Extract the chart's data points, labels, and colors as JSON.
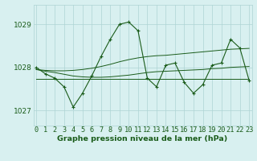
{
  "xlabel": "Graphe pression niveau de la mer (hPa)",
  "hours": [
    0,
    1,
    2,
    3,
    4,
    5,
    6,
    7,
    8,
    9,
    10,
    11,
    12,
    13,
    14,
    15,
    16,
    17,
    18,
    19,
    20,
    21,
    22,
    23
  ],
  "main_line": [
    1028.0,
    1027.85,
    1027.75,
    1027.55,
    1027.08,
    1027.4,
    1027.8,
    1028.25,
    1028.65,
    1029.0,
    1029.05,
    1028.85,
    1027.75,
    1027.55,
    1028.05,
    1028.1,
    1027.65,
    1027.4,
    1027.6,
    1028.05,
    1028.1,
    1028.65,
    1028.45,
    1027.7
  ],
  "smooth_upper": [
    1027.95,
    1027.93,
    1027.92,
    1027.92,
    1027.93,
    1027.95,
    1027.98,
    1028.02,
    1028.07,
    1028.13,
    1028.18,
    1028.22,
    1028.25,
    1028.27,
    1028.28,
    1028.3,
    1028.32,
    1028.34,
    1028.36,
    1028.38,
    1028.4,
    1028.42,
    1028.43,
    1028.44
  ],
  "smooth_lower": [
    1027.95,
    1027.91,
    1027.88,
    1027.84,
    1027.8,
    1027.78,
    1027.77,
    1027.77,
    1027.78,
    1027.8,
    1027.82,
    1027.85,
    1027.88,
    1027.9,
    1027.91,
    1027.92,
    1027.93,
    1027.94,
    1027.95,
    1027.97,
    1027.98,
    1028.0,
    1028.01,
    1028.02
  ],
  "flat_line": [
    1027.73,
    1027.73,
    1027.73,
    1027.73,
    1027.73,
    1027.73,
    1027.73,
    1027.73,
    1027.73,
    1027.73,
    1027.73,
    1027.73,
    1027.73,
    1027.73,
    1027.73,
    1027.73,
    1027.73,
    1027.73,
    1027.73,
    1027.73,
    1027.73,
    1027.73,
    1027.73,
    1027.73
  ],
  "ylim": [
    1026.65,
    1029.45
  ],
  "yticks": [
    1027,
    1028,
    1029
  ],
  "line_color": "#1a5c1a",
  "bg_color": "#d8f0f0",
  "grid_color": "#aed4d4",
  "xlabel_fontsize": 6.8,
  "tick_fontsize": 6.2
}
